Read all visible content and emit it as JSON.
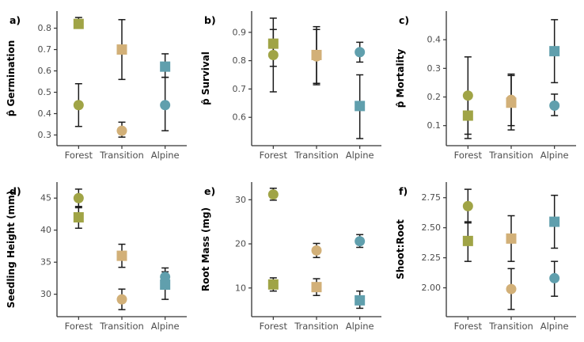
{
  "figure": {
    "background": "#ffffff",
    "axis_color": "#333333",
    "errorbar_color": "#1a1a1a",
    "tick_label_color": "#4d4d4d",
    "label_color": "#000000",
    "category_colors": {
      "Forest": "#A0A446",
      "Transition": "#D2B078",
      "Alpine": "#609FAD"
    }
  },
  "chart_data": {
    "type": "scatter",
    "categories": [
      "Forest",
      "Transition",
      "Alpine"
    ],
    "panels": [
      {
        "label": "a)",
        "ylabel": "p̂ Germination",
        "ylim": [
          0.25,
          0.88
        ],
        "yticks": [
          0.3,
          0.4,
          0.5,
          0.6,
          0.7,
          0.8
        ],
        "ytick_labels": [
          "0.3",
          "0.4",
          "0.5",
          "0.6",
          "0.7",
          "0.8"
        ],
        "points": [
          {
            "category": "Forest",
            "shape": "circle",
            "value": 0.44,
            "lo": 0.34,
            "hi": 0.54
          },
          {
            "category": "Forest",
            "shape": "square",
            "value": 0.82,
            "lo": 0.8,
            "hi": 0.85
          },
          {
            "category": "Transition",
            "shape": "circle",
            "value": 0.32,
            "lo": 0.29,
            "hi": 0.36
          },
          {
            "category": "Transition",
            "shape": "square",
            "value": 0.7,
            "lo": 0.56,
            "hi": 0.84
          },
          {
            "category": "Alpine",
            "shape": "circle",
            "value": 0.44,
            "lo": 0.32,
            "hi": 0.57
          },
          {
            "category": "Alpine",
            "shape": "square",
            "value": 0.62,
            "lo": 0.57,
            "hi": 0.68
          }
        ]
      },
      {
        "label": "b)",
        "ylabel": "p̂ Survival",
        "ylim": [
          0.5,
          0.975
        ],
        "yticks": [
          0.6,
          0.7,
          0.8,
          0.9
        ],
        "ytick_labels": [
          "0.6",
          "0.7",
          "0.8",
          "0.9"
        ],
        "points": [
          {
            "category": "Forest",
            "shape": "circle",
            "value": 0.82,
            "lo": 0.69,
            "hi": 0.91
          },
          {
            "category": "Forest",
            "shape": "square",
            "value": 0.86,
            "lo": 0.78,
            "hi": 0.95
          },
          {
            "category": "Transition",
            "shape": "circle",
            "value": 0.815,
            "lo": 0.72,
            "hi": 0.91
          },
          {
            "category": "Transition",
            "shape": "square",
            "value": 0.82,
            "lo": 0.715,
            "hi": 0.92
          },
          {
            "category": "Alpine",
            "shape": "circle",
            "value": 0.83,
            "lo": 0.795,
            "hi": 0.865
          },
          {
            "category": "Alpine",
            "shape": "square",
            "value": 0.64,
            "lo": 0.525,
            "hi": 0.75
          }
        ]
      },
      {
        "label": "c)",
        "ylabel": "p̂ Mortality",
        "ylim": [
          0.03,
          0.5
        ],
        "yticks": [
          0.1,
          0.2,
          0.3,
          0.4
        ],
        "ytick_labels": [
          "0.1",
          "0.2",
          "0.3",
          "0.4"
        ],
        "points": [
          {
            "category": "Forest",
            "shape": "circle",
            "value": 0.205,
            "lo": 0.07,
            "hi": 0.34
          },
          {
            "category": "Forest",
            "shape": "square",
            "value": 0.135,
            "lo": 0.055,
            "hi": 0.215
          },
          {
            "category": "Transition",
            "shape": "circle",
            "value": 0.19,
            "lo": 0.1,
            "hi": 0.28
          },
          {
            "category": "Transition",
            "shape": "square",
            "value": 0.18,
            "lo": 0.085,
            "hi": 0.275
          },
          {
            "category": "Alpine",
            "shape": "circle",
            "value": 0.17,
            "lo": 0.135,
            "hi": 0.21
          },
          {
            "category": "Alpine",
            "shape": "square",
            "value": 0.36,
            "lo": 0.25,
            "hi": 0.47
          }
        ]
      },
      {
        "label": "d)",
        "ylabel": "Seedling Height (mm)",
        "ylim": [
          26.5,
          47.5
        ],
        "yticks": [
          30,
          35,
          40,
          45
        ],
        "ytick_labels": [
          "30",
          "35",
          "40",
          "45"
        ],
        "points": [
          {
            "category": "Forest",
            "shape": "circle",
            "value": 45.0,
            "lo": 43.5,
            "hi": 46.4
          },
          {
            "category": "Forest",
            "shape": "square",
            "value": 42.0,
            "lo": 40.3,
            "hi": 43.7
          },
          {
            "category": "Transition",
            "shape": "circle",
            "value": 29.2,
            "lo": 27.6,
            "hi": 30.8
          },
          {
            "category": "Transition",
            "shape": "square",
            "value": 36.0,
            "lo": 34.2,
            "hi": 37.8
          },
          {
            "category": "Alpine",
            "shape": "circle",
            "value": 32.7,
            "lo": 31.3,
            "hi": 34.1
          },
          {
            "category": "Alpine",
            "shape": "square",
            "value": 31.5,
            "lo": 29.2,
            "hi": 33.5
          }
        ]
      },
      {
        "label": "e)",
        "ylabel": "Root Mass (mg)",
        "ylim": [
          3.5,
          34.0
        ],
        "yticks": [
          10,
          20,
          30
        ],
        "ytick_labels": [
          "10",
          "20",
          "30"
        ],
        "points": [
          {
            "category": "Forest",
            "shape": "circle",
            "value": 31.2,
            "lo": 29.9,
            "hi": 32.6
          },
          {
            "category": "Forest",
            "shape": "square",
            "value": 10.8,
            "lo": 9.3,
            "hi": 12.3
          },
          {
            "category": "Transition",
            "shape": "circle",
            "value": 18.5,
            "lo": 16.9,
            "hi": 20.1
          },
          {
            "category": "Transition",
            "shape": "square",
            "value": 10.2,
            "lo": 8.3,
            "hi": 12.1
          },
          {
            "category": "Alpine",
            "shape": "circle",
            "value": 20.6,
            "lo": 19.2,
            "hi": 22.1
          },
          {
            "category": "Alpine",
            "shape": "square",
            "value": 7.2,
            "lo": 5.4,
            "hi": 9.3
          }
        ]
      },
      {
        "label": "f)",
        "ylabel": "Shoot:Root",
        "ylim": [
          1.76,
          2.88
        ],
        "yticks": [
          2.0,
          2.25,
          2.5,
          2.75
        ],
        "ytick_labels": [
          "2.00",
          "2.25",
          "2.50",
          "2.75"
        ],
        "points": [
          {
            "category": "Forest",
            "shape": "circle",
            "value": 2.68,
            "lo": 2.54,
            "hi": 2.82
          },
          {
            "category": "Forest",
            "shape": "square",
            "value": 2.39,
            "lo": 2.22,
            "hi": 2.55
          },
          {
            "category": "Transition",
            "shape": "circle",
            "value": 1.99,
            "lo": 1.82,
            "hi": 2.16
          },
          {
            "category": "Transition",
            "shape": "square",
            "value": 2.41,
            "lo": 2.22,
            "hi": 2.6
          },
          {
            "category": "Alpine",
            "shape": "circle",
            "value": 2.08,
            "lo": 1.93,
            "hi": 2.22
          },
          {
            "category": "Alpine",
            "shape": "square",
            "value": 2.55,
            "lo": 2.33,
            "hi": 2.77
          }
        ]
      }
    ]
  }
}
